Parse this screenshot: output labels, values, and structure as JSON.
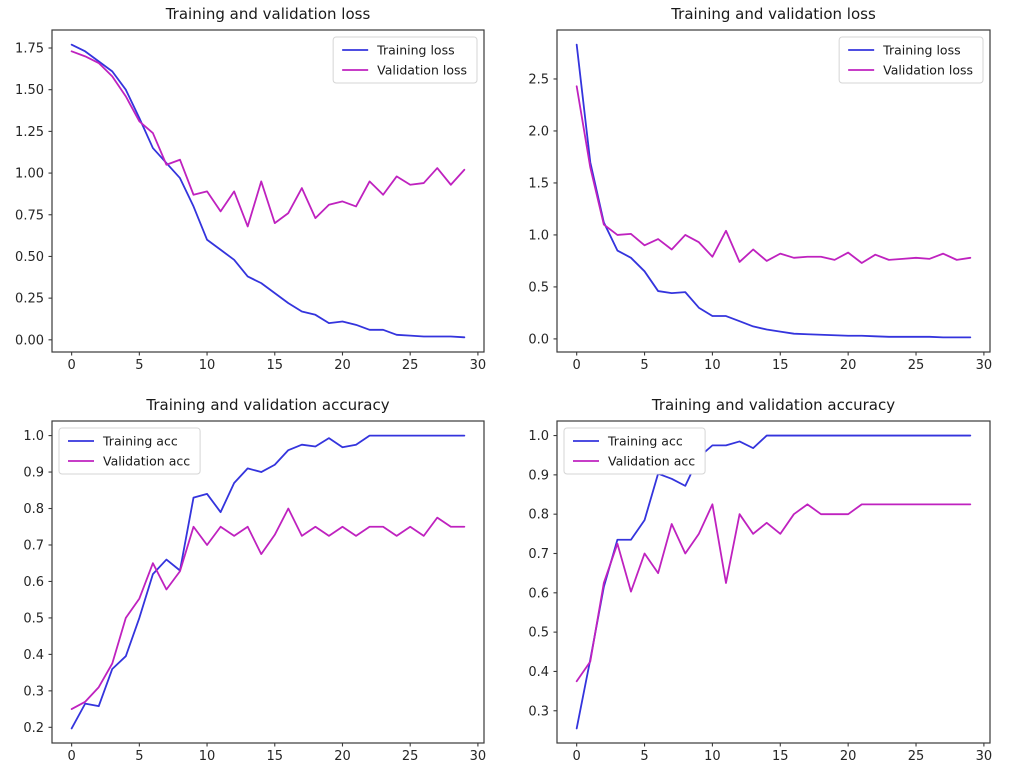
{
  "figure": {
    "background": "#ffffff",
    "axis_color": "#3a3a3a",
    "tick_label_color": "#262626",
    "title_color": "#1a1a1a",
    "legend_border_color": "#d5d5d5",
    "legend_bg": "#ffffff"
  },
  "colors": {
    "training": "#3434dd",
    "validation": "#bf22bf"
  },
  "chart_data": [
    {
      "id": "loss-top-left",
      "type": "line",
      "title": "Training and validation loss",
      "legend_position": "top-right",
      "xlabel": "",
      "ylabel": "",
      "xlim": [
        -1.45,
        30.45
      ],
      "ylim": [
        -0.073,
        1.858
      ],
      "grid": false,
      "xticks": [
        0,
        5,
        10,
        15,
        20,
        25,
        30
      ],
      "xtick_labels": [
        "0",
        "5",
        "10",
        "15",
        "20",
        "25",
        "30"
      ],
      "yticks": [
        0.0,
        0.25,
        0.5,
        0.75,
        1.0,
        1.25,
        1.5,
        1.75
      ],
      "ytick_labels": [
        "0.00",
        "0.25",
        "0.50",
        "0.75",
        "1.00",
        "1.25",
        "1.50",
        "1.75"
      ],
      "x": [
        0,
        1,
        2,
        3,
        4,
        5,
        6,
        7,
        8,
        9,
        10,
        11,
        12,
        13,
        14,
        15,
        16,
        17,
        18,
        19,
        20,
        21,
        22,
        23,
        24,
        25,
        26,
        27,
        28,
        29
      ],
      "series": [
        {
          "name": "Training loss",
          "color": "#3434dd",
          "values": [
            1.77,
            1.73,
            1.67,
            1.61,
            1.5,
            1.33,
            1.15,
            1.06,
            0.97,
            0.8,
            0.6,
            0.54,
            0.48,
            0.38,
            0.34,
            0.28,
            0.22,
            0.17,
            0.15,
            0.1,
            0.11,
            0.09,
            0.06,
            0.06,
            0.03,
            0.025,
            0.02,
            0.02,
            0.02,
            0.015
          ]
        },
        {
          "name": "Validation loss",
          "color": "#bf22bf",
          "values": [
            1.73,
            1.7,
            1.66,
            1.58,
            1.46,
            1.31,
            1.24,
            1.05,
            1.08,
            0.87,
            0.89,
            0.77,
            0.89,
            0.68,
            0.95,
            0.7,
            0.76,
            0.91,
            0.73,
            0.81,
            0.83,
            0.8,
            0.95,
            0.87,
            0.98,
            0.93,
            0.94,
            1.03,
            0.93,
            1.02
          ]
        }
      ]
    },
    {
      "id": "loss-top-right",
      "type": "line",
      "title": "Training and validation loss",
      "legend_position": "top-right",
      "xlabel": "",
      "ylabel": "",
      "xlim": [
        -1.45,
        30.45
      ],
      "ylim": [
        -0.126,
        2.971
      ],
      "grid": false,
      "xticks": [
        0,
        5,
        10,
        15,
        20,
        25,
        30
      ],
      "xtick_labels": [
        "0",
        "5",
        "10",
        "15",
        "20",
        "25",
        "30"
      ],
      "yticks": [
        0.0,
        0.5,
        1.0,
        1.5,
        2.0,
        2.5
      ],
      "ytick_labels": [
        "0.0",
        "0.5",
        "1.0",
        "1.5",
        "2.0",
        "2.5"
      ],
      "x": [
        0,
        1,
        2,
        3,
        4,
        5,
        6,
        7,
        8,
        9,
        10,
        11,
        12,
        13,
        14,
        15,
        16,
        17,
        18,
        19,
        20,
        21,
        22,
        23,
        24,
        25,
        26,
        27,
        28,
        29
      ],
      "series": [
        {
          "name": "Training loss",
          "color": "#3434dd",
          "values": [
            2.83,
            1.7,
            1.12,
            0.85,
            0.78,
            0.65,
            0.46,
            0.44,
            0.45,
            0.3,
            0.22,
            0.22,
            0.17,
            0.12,
            0.09,
            0.07,
            0.05,
            0.045,
            0.04,
            0.035,
            0.03,
            0.03,
            0.025,
            0.02,
            0.02,
            0.02,
            0.02,
            0.015,
            0.015,
            0.015
          ]
        },
        {
          "name": "Validation loss",
          "color": "#bf22bf",
          "values": [
            2.43,
            1.65,
            1.1,
            1.0,
            1.01,
            0.9,
            0.96,
            0.86,
            1.0,
            0.93,
            0.79,
            1.04,
            0.74,
            0.86,
            0.75,
            0.82,
            0.78,
            0.79,
            0.79,
            0.76,
            0.83,
            0.73,
            0.81,
            0.76,
            0.77,
            0.78,
            0.77,
            0.82,
            0.76,
            0.78
          ]
        }
      ]
    },
    {
      "id": "accuracy-bottom-left",
      "type": "line",
      "title": "Training and validation accuracy",
      "legend_position": "top-left",
      "xlabel": "",
      "ylabel": "",
      "xlim": [
        -1.45,
        30.45
      ],
      "ylim": [
        0.157,
        1.04
      ],
      "grid": false,
      "xticks": [
        0,
        5,
        10,
        15,
        20,
        25,
        30
      ],
      "xtick_labels": [
        "0",
        "5",
        "10",
        "15",
        "20",
        "25",
        "30"
      ],
      "yticks": [
        0.2,
        0.3,
        0.4,
        0.5,
        0.6,
        0.7,
        0.8,
        0.9,
        1.0
      ],
      "ytick_labels": [
        "0.2",
        "0.3",
        "0.4",
        "0.5",
        "0.6",
        "0.7",
        "0.8",
        "0.9",
        "1.0"
      ],
      "x": [
        0,
        1,
        2,
        3,
        4,
        5,
        6,
        7,
        8,
        9,
        10,
        11,
        12,
        13,
        14,
        15,
        16,
        17,
        18,
        19,
        20,
        21,
        22,
        23,
        24,
        25,
        26,
        27,
        28,
        29
      ],
      "series": [
        {
          "name": "Training acc",
          "color": "#3434dd",
          "values": [
            0.197,
            0.265,
            0.258,
            0.36,
            0.395,
            0.5,
            0.62,
            0.66,
            0.63,
            0.83,
            0.84,
            0.79,
            0.87,
            0.91,
            0.9,
            0.92,
            0.96,
            0.975,
            0.97,
            0.993,
            0.968,
            0.975,
            1.0,
            1.0,
            1.0,
            1.0,
            1.0,
            1.0,
            1.0,
            1.0
          ]
        },
        {
          "name": "Validation acc",
          "color": "#bf22bf",
          "values": [
            0.25,
            0.27,
            0.31,
            0.375,
            0.5,
            0.553,
            0.65,
            0.578,
            0.628,
            0.75,
            0.7,
            0.75,
            0.725,
            0.75,
            0.675,
            0.728,
            0.8,
            0.725,
            0.75,
            0.725,
            0.75,
            0.725,
            0.75,
            0.75,
            0.725,
            0.75,
            0.725,
            0.775,
            0.75,
            0.75
          ]
        }
      ]
    },
    {
      "id": "accuracy-bottom-right",
      "type": "line",
      "title": "Training and validation accuracy",
      "legend_position": "top-left",
      "xlabel": "",
      "ylabel": "",
      "xlim": [
        -1.45,
        30.45
      ],
      "ylim": [
        0.218,
        1.037
      ],
      "grid": false,
      "xticks": [
        0,
        5,
        10,
        15,
        20,
        25,
        30
      ],
      "xtick_labels": [
        "0",
        "5",
        "10",
        "15",
        "20",
        "25",
        "30"
      ],
      "yticks": [
        0.3,
        0.4,
        0.5,
        0.6,
        0.7,
        0.8,
        0.9,
        1.0
      ],
      "ytick_labels": [
        "0.3",
        "0.4",
        "0.5",
        "0.6",
        "0.7",
        "0.8",
        "0.9",
        "1.0"
      ],
      "x": [
        0,
        1,
        2,
        3,
        4,
        5,
        6,
        7,
        8,
        9,
        10,
        11,
        12,
        13,
        14,
        15,
        16,
        17,
        18,
        19,
        20,
        21,
        22,
        23,
        24,
        25,
        26,
        27,
        28,
        29
      ],
      "series": [
        {
          "name": "Training acc",
          "color": "#3434dd",
          "values": [
            0.255,
            0.43,
            0.615,
            0.735,
            0.735,
            0.785,
            0.903,
            0.89,
            0.872,
            0.945,
            0.975,
            0.975,
            0.985,
            0.968,
            1.0,
            1.0,
            1.0,
            1.0,
            1.0,
            1.0,
            1.0,
            1.0,
            1.0,
            1.0,
            1.0,
            1.0,
            1.0,
            1.0,
            1.0,
            1.0
          ]
        },
        {
          "name": "Validation acc",
          "color": "#bf22bf",
          "values": [
            0.375,
            0.425,
            0.625,
            0.725,
            0.603,
            0.7,
            0.65,
            0.775,
            0.7,
            0.75,
            0.825,
            0.625,
            0.8,
            0.75,
            0.778,
            0.75,
            0.8,
            0.825,
            0.8,
            0.8,
            0.8,
            0.825,
            0.825,
            0.825,
            0.825,
            0.825,
            0.825,
            0.825,
            0.825,
            0.825
          ]
        }
      ]
    }
  ]
}
